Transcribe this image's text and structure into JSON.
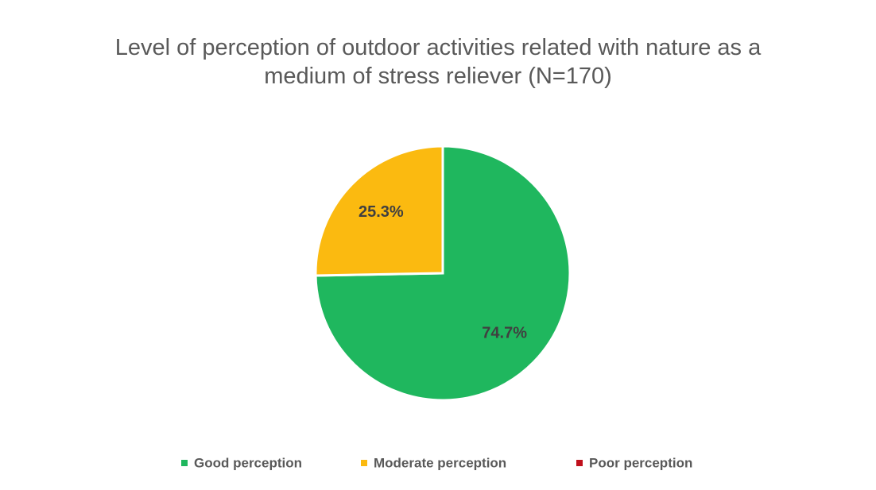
{
  "chart_data": {
    "type": "pie",
    "title": "Level of perception of outdoor activities related with nature as a medium of stress reliever (N=170)",
    "categories": [
      "Good perception",
      "Moderate perception",
      "Poor perception"
    ],
    "values": [
      74.7,
      25.3,
      0
    ],
    "value_labels": [
      "74.7%",
      "25.3%",
      null
    ],
    "colors": [
      "#1fb75e",
      "#fbba10",
      "#c0101c"
    ],
    "legend": "bottom"
  }
}
